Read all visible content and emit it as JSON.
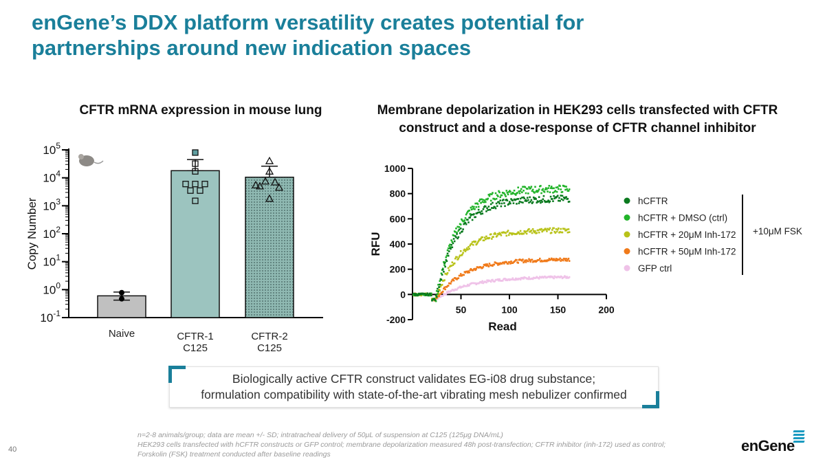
{
  "slide": {
    "title_line1": "enGene’s DDX platform versatility creates potential for",
    "title_line2": "partnerships around new indication spaces",
    "page_number": "40",
    "logo_text": "enGene",
    "callout_line1": "Biologically active CFTR construct validates EG-i08 drug substance;",
    "callout_line2": "formulation compatibility with state-of-the-art vibrating mesh nebulizer confirmed",
    "footnote_line1": "n=2-8 animals/group; data are mean +/- SD; intratracheal delivery of 50μL of suspension at C125 (125μg DNA/mL)",
    "footnote_line2": "HEK293 cells transfected with hCFTR constructs or GFP control; membrane depolarization measured 48h post-transfection; CFTR inhibitor (inh-172) used as control;",
    "footnote_line3": "Forskolin (FSK) treatment conducted after baseline readings",
    "accent_color": "#1a7f9a"
  },
  "chart_data": [
    {
      "type": "bar",
      "title": "CFTR mRNA expression in mouse lung",
      "ylabel": "Copy Number",
      "xlabel": "",
      "yscale": "log",
      "ylim_exp": [
        -1,
        5
      ],
      "ytick_exponents": [
        "5",
        "4",
        "3",
        "2",
        "1",
        "0",
        "-1"
      ],
      "categories": [
        "Naive",
        "CFTR-1\nC125",
        "CFTR-2\nC125"
      ],
      "category_labels": [
        [
          "Naive"
        ],
        [
          "CFTR-1",
          "C125"
        ],
        [
          "CFTR-2",
          "C125"
        ]
      ],
      "values": [
        0.6,
        18000,
        10500
      ],
      "error_upper": [
        0.82,
        45000,
        26000
      ],
      "error_lower": [
        0.42,
        18000,
        10500
      ],
      "points": [
        [
          0.78,
          0.47
        ],
        [
          80000,
          32000,
          17000,
          6000,
          6000,
          6000,
          3500,
          3500,
          1500
        ],
        [
          40000,
          17000,
          7500,
          7000,
          5000,
          4500,
          5500,
          1800
        ]
      ],
      "markers": [
        "circle",
        "square",
        "triangle"
      ],
      "colors": [
        "#c0c0c0",
        "#9cc4bf",
        "#8fb9b2"
      ],
      "icon": "mouse-icon"
    },
    {
      "type": "scatter",
      "title": "Membrane depolarization in HEK293 cells transfected with CFTR construct and a dose-response of CFTR channel inhibitor",
      "title_line1": "Membrane depolarization in HEK293 cells transfected with CFTR",
      "title_line2": "construct and a dose-response of CFTR channel inhibitor",
      "xlabel": "Read",
      "ylabel": "RFU",
      "xlim": [
        0,
        200
      ],
      "ylim": [
        -200,
        1000
      ],
      "xticks": [
        "50",
        "100",
        "150",
        "200"
      ],
      "yticks": [
        "1000",
        "800",
        "600",
        "400",
        "200",
        "0",
        "-200"
      ],
      "fsk_label": "+10μM FSK",
      "series": [
        {
          "name": "hCFTR",
          "color": "#0b7a1f",
          "plateau": 760,
          "rate": 0.045
        },
        {
          "name": "hCFTR + DMSO (ctrl)",
          "color": "#22b42a",
          "plateau": 840,
          "rate": 0.045
        },
        {
          "name": "hCFTR + 20μM Inh-172",
          "color": "#b8c219",
          "plateau": 510,
          "rate": 0.042
        },
        {
          "name": "hCFTR + 50μM Inh-172",
          "color": "#f07a1a",
          "plateau": 280,
          "rate": 0.035
        },
        {
          "name": "GFP ctrl",
          "color": "#efc2e8",
          "plateau": 140,
          "rate": 0.03
        }
      ],
      "baseline_end": 20,
      "x_end": 162
    }
  ]
}
